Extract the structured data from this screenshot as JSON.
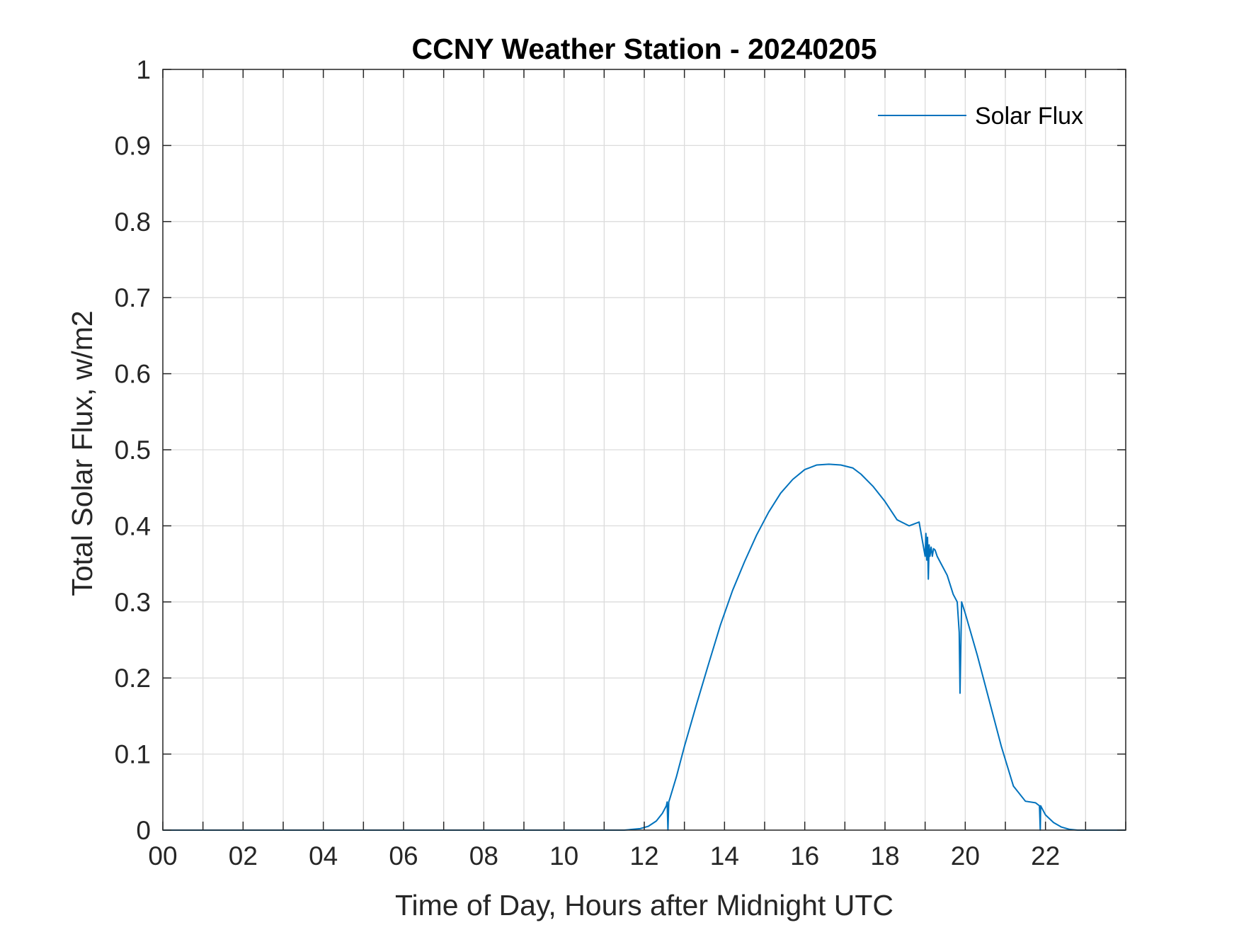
{
  "chart_data": {
    "type": "line",
    "title": "CCNY Weather Station - 20240205",
    "xlabel": "Time of Day, Hours after Midnight UTC",
    "ylabel": "Total Solar Flux, w/m2",
    "xlim": [
      0,
      24
    ],
    "ylim": [
      0,
      1
    ],
    "x_ticks": [
      0,
      2,
      4,
      6,
      8,
      10,
      12,
      14,
      16,
      18,
      20,
      22
    ],
    "x_tick_labels": [
      "00",
      "02",
      "04",
      "06",
      "08",
      "10",
      "12",
      "14",
      "16",
      "18",
      "20",
      "22"
    ],
    "x_minor_grid_step": 1,
    "y_ticks": [
      0,
      0.1,
      0.2,
      0.3,
      0.4,
      0.5,
      0.6,
      0.7,
      0.8,
      0.9,
      1
    ],
    "y_tick_labels": [
      "0",
      "0.1",
      "0.2",
      "0.3",
      "0.4",
      "0.5",
      "0.6",
      "0.7",
      "0.8",
      "0.9",
      "1"
    ],
    "grid": true,
    "legend": {
      "position": "top-right",
      "entries": [
        "Solar Flux"
      ]
    },
    "line_color": "#0072bd",
    "series": [
      {
        "name": "Solar Flux",
        "x": [
          0,
          11.5,
          11.9,
          12.1,
          12.3,
          12.45,
          12.55,
          12.57,
          12.59,
          12.61,
          12.64,
          12.8,
          13.0,
          13.3,
          13.6,
          13.9,
          14.2,
          14.5,
          14.8,
          15.1,
          15.4,
          15.7,
          16.0,
          16.3,
          16.6,
          16.9,
          17.2,
          17.4,
          17.7,
          18.0,
          18.3,
          18.6,
          18.85,
          19.0,
          19.02,
          19.04,
          19.06,
          19.08,
          19.1,
          19.12,
          19.15,
          19.18,
          19.21,
          19.25,
          19.3,
          19.4,
          19.55,
          19.7,
          19.8,
          19.85,
          19.87,
          19.89,
          19.91,
          19.94,
          20.0,
          20.3,
          20.6,
          20.9,
          21.2,
          21.5,
          21.75,
          21.85,
          21.87,
          21.88,
          21.9,
          22.0,
          22.2,
          22.4,
          22.6,
          22.8,
          23.0,
          24.0
        ],
        "values": [
          0,
          0,
          0.002,
          0.005,
          0.012,
          0.022,
          0.032,
          0.037,
          0.0,
          0.037,
          0.042,
          0.07,
          0.11,
          0.165,
          0.218,
          0.27,
          0.315,
          0.353,
          0.388,
          0.418,
          0.443,
          0.461,
          0.474,
          0.48,
          0.481,
          0.48,
          0.476,
          0.468,
          0.452,
          0.432,
          0.408,
          0.4,
          0.405,
          0.36,
          0.39,
          0.355,
          0.385,
          0.33,
          0.375,
          0.36,
          0.372,
          0.36,
          0.37,
          0.368,
          0.36,
          0.35,
          0.335,
          0.31,
          0.3,
          0.26,
          0.18,
          0.24,
          0.3,
          0.295,
          0.285,
          0.23,
          0.17,
          0.11,
          0.058,
          0.038,
          0.036,
          0.032,
          0.0,
          0.032,
          0.03,
          0.02,
          0.01,
          0.004,
          0.001,
          0,
          0,
          0
        ]
      }
    ]
  }
}
